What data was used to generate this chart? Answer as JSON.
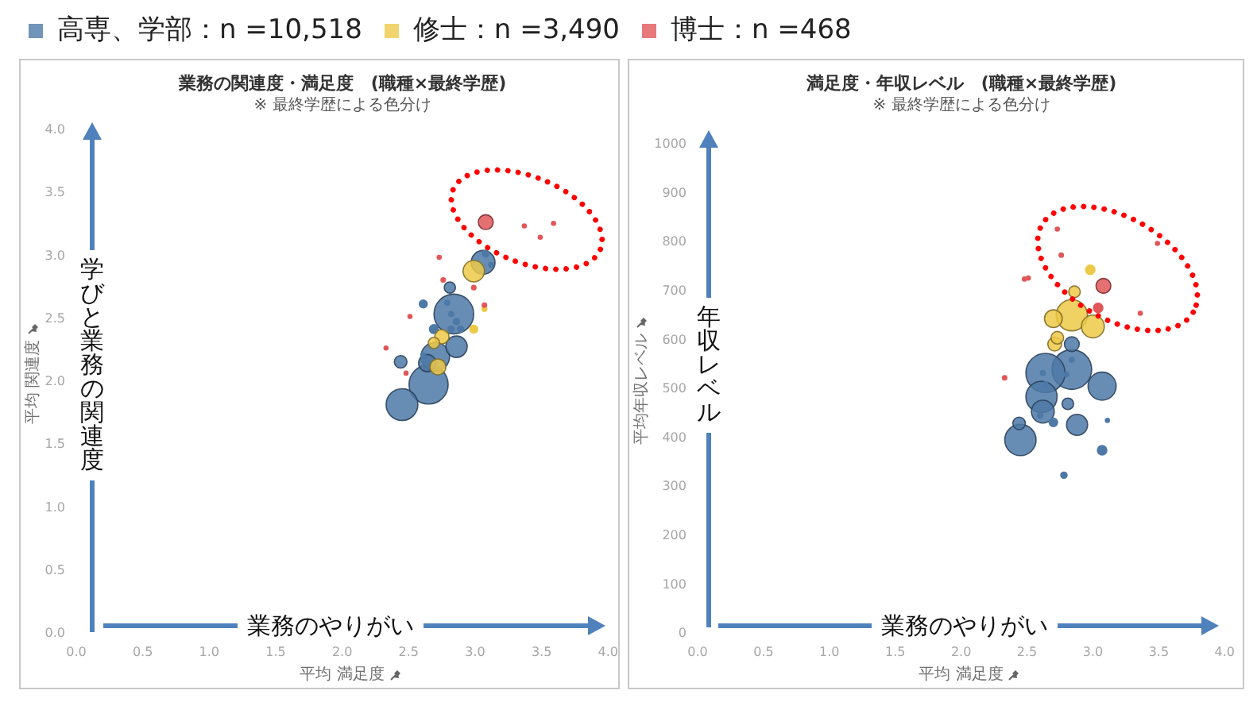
{
  "chart_data": [
    {
      "type": "bubble",
      "title": "業務の関連度・満足度　(職種×最終学歴)",
      "subtitle": "※ 最終学歴による色分け",
      "xlabel": "平均 満足度",
      "ylabel": "平均 関連度",
      "annotations": [
        "学びと業務の関連度",
        "業務のやりがい"
      ],
      "legend": "top",
      "xlim": [
        0,
        4
      ],
      "ylim": [
        0,
        4
      ],
      "xticks": [
        {
          "value": 0,
          "label": "0.0"
        },
        0.5,
        {
          "value": 1,
          "label": "1.0"
        },
        1.5,
        {
          "value": 2,
          "label": "2.0"
        },
        2.5,
        {
          "value": 3,
          "label": "3.0"
        },
        3.5,
        {
          "value": 4,
          "label": "4.0"
        }
      ],
      "yticks": [
        {
          "value": 0,
          "label": "0.0"
        },
        0.5,
        {
          "value": 1,
          "label": "1.0"
        },
        1.5,
        {
          "value": 2,
          "label": "2.0"
        },
        2.5,
        {
          "value": 3,
          "label": "3.0"
        },
        3.5,
        {
          "value": 4,
          "label": "4.0"
        }
      ],
      "series": [
        {
          "name": "高専、学部：n =10,518",
          "color": "#4e79a7",
          "x": [
            2.84,
            2.65,
            2.45,
            2.7,
            3.06,
            2.86,
            2.64,
            2.44,
            2.81,
            2.69,
            2.61,
            3.08,
            3.12,
            2.79,
            2.82,
            2.86,
            2.82,
            2.89,
            2.61
          ],
          "values": [
            2.54,
            1.98,
            1.82,
            2.2,
            2.95,
            2.28,
            2.15,
            2.16,
            2.75,
            2.42,
            2.62,
            3.02,
            2.93,
            2.63,
            2.54,
            2.48,
            2.42,
            2.42,
            2.21
          ],
          "sizes": [
            1,
            0.97,
            0.64,
            0.52,
            0.36,
            0.29,
            0.19,
            0.1,
            0.08,
            0.05,
            0.04,
            0.03,
            0.015,
            0.015,
            0.015,
            0.025,
            0.025,
            0.025,
            0.015
          ]
        },
        {
          "name": "修士：n =3,490",
          "color": "#edc948",
          "x": [
            2.99,
            2.72,
            2.75,
            2.69,
            2.99,
            3.07
          ],
          "values": [
            2.88,
            2.12,
            2.36,
            2.31,
            2.42,
            2.58
          ],
          "sizes": [
            0.29,
            0.16,
            0.13,
            0.08,
            0.04,
            0.015
          ]
        },
        {
          "name": "博士：n =468",
          "color": "#e15759",
          "x": [
            3.08,
            3.37,
            3.59,
            3.49,
            2.73,
            2.76,
            2.99,
            3.07,
            2.51,
            2.33,
            2.48
          ],
          "values": [
            3.27,
            3.24,
            3.26,
            3.15,
            2.99,
            2.81,
            2.75,
            2.61,
            2.52,
            2.27,
            2.07
          ],
          "sizes": [
            0.14,
            0.01,
            0.01,
            0.01,
            0.01,
            0.012,
            0.012,
            0.012,
            0.01,
            0.01,
            0.01
          ]
        }
      ]
    },
    {
      "type": "bubble",
      "title": "満足度・年収レベル　(職種×最終学歴)",
      "subtitle": "※ 最終学歴による色分け",
      "xlabel": "平均 満足度",
      "ylabel": "平均年収レベル",
      "annotations": [
        "年収レベル",
        "業務のやりがい"
      ],
      "xlim": [
        0,
        4
      ],
      "ylim": [
        0,
        1000
      ],
      "xticks": [
        {
          "value": 0,
          "label": "0.0"
        },
        0.5,
        {
          "value": 1,
          "label": "1.0"
        },
        1.5,
        {
          "value": 2,
          "label": "2.0"
        },
        2.5,
        {
          "value": 3,
          "label": "3.0"
        },
        3.5,
        {
          "value": 4,
          "label": "4.0"
        }
      ],
      "yticks": [
        0,
        100,
        200,
        300,
        400,
        500,
        600,
        700,
        800,
        900,
        1000
      ],
      "series": [
        {
          "color": "#4e79a7",
          "x": [
            2.84,
            2.64,
            2.61,
            2.45,
            3.07,
            2.62,
            2.88,
            2.84,
            2.44,
            2.81,
            3.07,
            2.7,
            2.78,
            3.11,
            2.62,
            2.64,
            2.8,
            2.84,
            2.6
          ],
          "values": [
            540,
            533,
            484,
            396,
            506,
            454,
            427,
            592,
            430,
            470,
            375,
            432,
            324,
            436,
            533,
            510,
            530,
            560,
            446
          ],
          "sizes": [
            1,
            0.97,
            0.62,
            0.62,
            0.5,
            0.33,
            0.28,
            0.14,
            0.1,
            0.085,
            0.056,
            0.045,
            0.025,
            0.01,
            0.015,
            0.015,
            0.015,
            0.015,
            0.02
          ]
        },
        {
          "color": "#edc948",
          "x": [
            2.84,
            3.0,
            2.7,
            2.71,
            2.73,
            2.86,
            2.98
          ],
          "values": [
            651,
            628,
            644,
            592,
            605,
            699,
            744
          ],
          "sizes": [
            0.62,
            0.33,
            0.2,
            0.12,
            0.1,
            0.085,
            0.056
          ]
        },
        {
          "color": "#e15759",
          "x": [
            3.08,
            3.04,
            2.73,
            3.49,
            2.76,
            2.48,
            2.51,
            3.36,
            2.33
          ],
          "values": [
            711,
            666,
            827,
            798,
            774,
            725,
            727,
            655,
            523
          ],
          "sizes": [
            0.14,
            0.056,
            0.01,
            0.01,
            0.012,
            0.01,
            0.01,
            0.01,
            0.012
          ]
        }
      ]
    }
  ]
}
